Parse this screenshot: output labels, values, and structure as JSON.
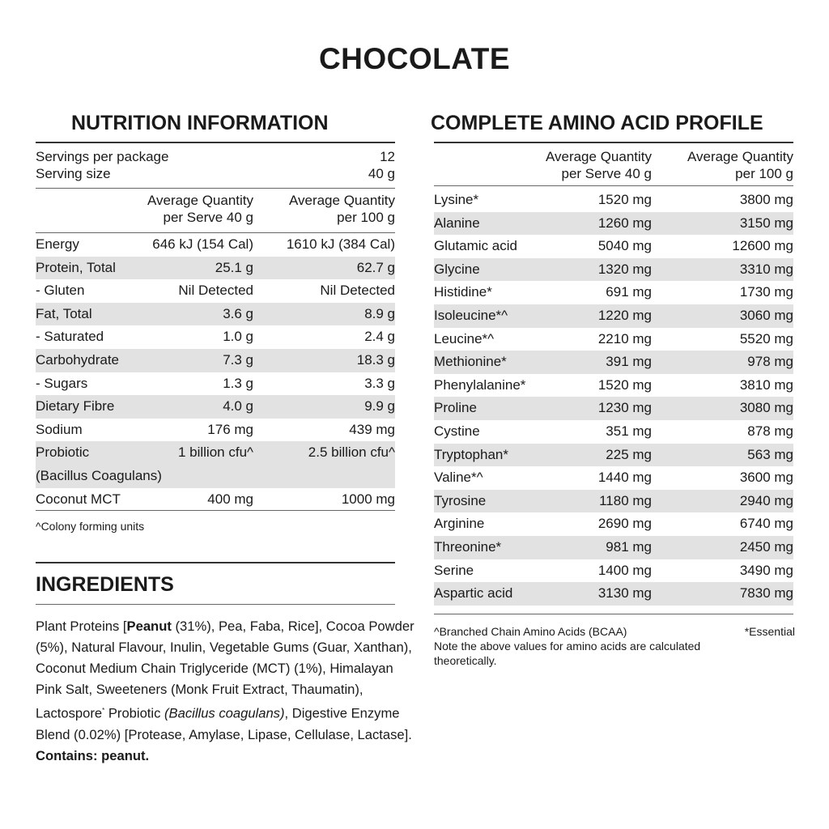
{
  "title": "CHOCOLATE",
  "nutrition": {
    "heading": "NUTRITION INFORMATION",
    "servings_label": "Servings per package",
    "servings_value": "12",
    "serving_size_label": "Serving size",
    "serving_size_value": "40 g",
    "col1_line1": "Average Quantity",
    "col1_line2": "per Serve 40 g",
    "col2_line1": "Average Quantity",
    "col2_line2": "per 100 g",
    "rows": [
      {
        "label": "Energy",
        "serve": "646 kJ (154 Cal)",
        "per100": "1610 kJ (384 Cal)"
      },
      {
        "label": "Protein, Total",
        "serve": "25.1 g",
        "per100": "62.7 g"
      },
      {
        "label": "- Gluten",
        "serve": "Nil Detected",
        "per100": "Nil Detected"
      },
      {
        "label": "Fat, Total",
        "serve": "3.6 g",
        "per100": "8.9 g"
      },
      {
        "label": "- Saturated",
        "serve": "1.0 g",
        "per100": "2.4 g"
      },
      {
        "label": "Carbohydrate",
        "serve": "7.3 g",
        "per100": "18.3 g"
      },
      {
        "label": "- Sugars",
        "serve": "1.3 g",
        "per100": "3.3 g"
      },
      {
        "label": "Dietary Fibre",
        "serve": "4.0 g",
        "per100": "9.9 g"
      },
      {
        "label": "Sodium",
        "serve": "176 mg",
        "per100": "439 mg"
      },
      {
        "label": "Probiotic",
        "label2": "(Bacillus Coagulans)",
        "serve": "1 billion cfu^",
        "per100": "2.5 billion cfu^"
      },
      {
        "label": "Coconut MCT",
        "serve": "400 mg",
        "per100": "1000 mg"
      }
    ],
    "footnote": "^Colony forming units"
  },
  "ingredients": {
    "heading": "INGREDIENTS",
    "p1": "Plant Proteins [",
    "peanut": "Peanut",
    "p2": " (31%), Pea, Faba, Rice], Cocoa Powder (5%), Natural Flavour, Inulin, Vegetable Gums (Guar, Xanthan), Coconut Medium Chain Triglyceride (MCT) (1%), Himalayan Pink Salt, Sweeteners (Monk Fruit Extract, Thaumatin), Lactospore",
    "sup": "*",
    "p3": " Probiotic ",
    "italic": "(Bacillus coagulans)",
    "p4": ", Digestive Enzyme Blend (0.02%) [Protease, Amylase, Lipase, Cellulase, Lactase].",
    "contains": "Contains: peanut."
  },
  "amino": {
    "heading": "COMPLETE AMINO ACID PROFILE",
    "col1_line1": "Average Quantity",
    "col1_line2": "per Serve 40 g",
    "col2_line1": "Average Quantity",
    "col2_line2": "per 100 g",
    "rows": [
      {
        "label": "Lysine*",
        "serve": "1520 mg",
        "per100": "3800 mg"
      },
      {
        "label": "Alanine",
        "serve": "1260 mg",
        "per100": "3150 mg"
      },
      {
        "label": "Glutamic acid",
        "serve": "5040 mg",
        "per100": "12600 mg"
      },
      {
        "label": "Glycine",
        "serve": "1320 mg",
        "per100": "3310 mg"
      },
      {
        "label": "Histidine*",
        "serve": "691 mg",
        "per100": "1730 mg"
      },
      {
        "label": "Isoleucine*^",
        "serve": "1220 mg",
        "per100": "3060 mg"
      },
      {
        "label": "Leucine*^",
        "serve": "2210 mg",
        "per100": "5520 mg"
      },
      {
        "label": "Methionine*",
        "serve": "391 mg",
        "per100": "978 mg"
      },
      {
        "label": "Phenylalanine*",
        "serve": "1520 mg",
        "per100": "3810 mg"
      },
      {
        "label": "Proline",
        "serve": "1230 mg",
        "per100": "3080 mg"
      },
      {
        "label": "Cystine",
        "serve": "351 mg",
        "per100": "878 mg"
      },
      {
        "label": "Tryptophan*",
        "serve": "225 mg",
        "per100": "563 mg"
      },
      {
        "label": "Valine*^",
        "serve": "1440 mg",
        "per100": "3600 mg"
      },
      {
        "label": "Tyrosine",
        "serve": "1180 mg",
        "per100": "2940 mg"
      },
      {
        "label": "Arginine",
        "serve": "2690 mg",
        "per100": "6740 mg"
      },
      {
        "label": "Threonine*",
        "serve": "981 mg",
        "per100": "2450 mg"
      },
      {
        "label": "Serine",
        "serve": "1400 mg",
        "per100": "3490 mg"
      },
      {
        "label": "Aspartic acid",
        "serve": "3130 mg",
        "per100": "7830 mg"
      }
    ],
    "footnote_bcaa": "^Branched Chain Amino Acids (BCAA)",
    "footnote_essential": "*Essential",
    "note_line1": "Note the above values for amino acids are calculated",
    "note_line2": "theoretically."
  }
}
